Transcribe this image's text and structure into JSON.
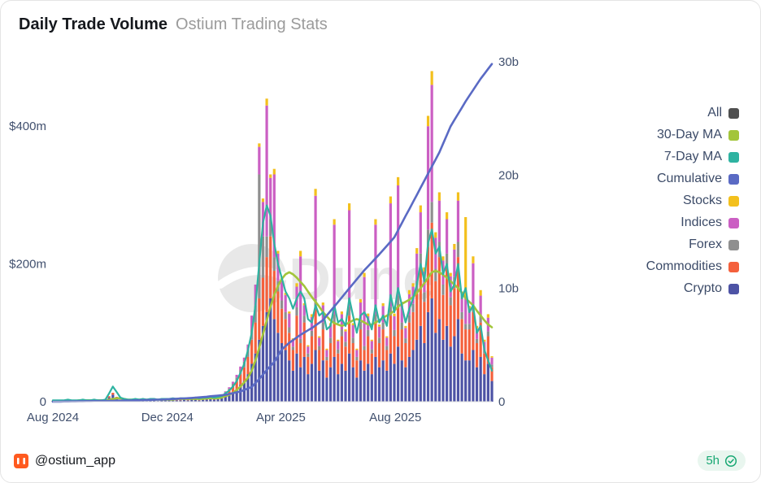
{
  "card": {
    "title": "Daily Trade Volume",
    "subtitle": "Ostium Trading Stats",
    "footer": {
      "handle": "@ostium_app",
      "time": "5h"
    }
  },
  "watermark": "Dune",
  "legend": [
    {
      "label": "All",
      "color": "#4f4f4f"
    },
    {
      "label": "30-Day MA",
      "color": "#a3c53a"
    },
    {
      "label": "7-Day MA",
      "color": "#2eb3a1"
    },
    {
      "label": "Cumulative",
      "color": "#5a6ac4"
    },
    {
      "label": "Stocks",
      "color": "#f3c01d"
    },
    {
      "label": "Indices",
      "color": "#cb5fc3"
    },
    {
      "label": "Forex",
      "color": "#8f8f8f"
    },
    {
      "label": "Commodities",
      "color": "#f4603c"
    },
    {
      "label": "Crypto",
      "color": "#4d53a5"
    }
  ],
  "chart_data": {
    "type": "combo",
    "title": "Daily Trade Volume",
    "subtitle": "Ostium Trading Stats",
    "legend_position": "right",
    "grid": false,
    "x_start": "2024-08-01",
    "x_step_days": 4,
    "x_ticks": [
      {
        "label": "Aug 2024",
        "index": 0
      },
      {
        "label": "Dec 2024",
        "index": 30.5
      },
      {
        "label": "Apr 2025",
        "index": 60.75
      },
      {
        "label": "Aug 2025",
        "index": 91.25
      }
    ],
    "y_left": {
      "unit": "$m",
      "ticks": [
        "0",
        "$200m",
        "$400m"
      ],
      "tick_values": [
        0,
        200,
        400
      ],
      "max": 510
    },
    "y_right": {
      "unit": "$b",
      "ticks": [
        "0",
        "10b",
        "20b",
        "30b"
      ],
      "tick_values": [
        0,
        10,
        20,
        30
      ],
      "max": 31
    },
    "bar_series": [
      {
        "name": "Crypto",
        "color": "#4d53a5",
        "axis": "left",
        "values": [
          1,
          1,
          1,
          1,
          2,
          1,
          1,
          1,
          2,
          1,
          1,
          2,
          1,
          1,
          2,
          6,
          10,
          5,
          2,
          2,
          1,
          2,
          1,
          2,
          2,
          1,
          2,
          2,
          1,
          2,
          2,
          2,
          3,
          2,
          2,
          3,
          2,
          3,
          3,
          2,
          3,
          3,
          4,
          3,
          4,
          5,
          8,
          10,
          14,
          18,
          25,
          30,
          40,
          55,
          70,
          90,
          110,
          130,
          150,
          120,
          100,
          85,
          75,
          60,
          45,
          70,
          50,
          65,
          40,
          55,
          75,
          45,
          60,
          35,
          50,
          65,
          40,
          55,
          45,
          70,
          50,
          35,
          60,
          45,
          55,
          40,
          65,
          50,
          60,
          45,
          70,
          55,
          80,
          60,
          50,
          65,
          75,
          90,
          110,
          85,
          130,
          150,
          100,
          120,
          90,
          110,
          80,
          95,
          120,
          70,
          60,
          60,
          75,
          50,
          65,
          40,
          55,
          30
        ]
      },
      {
        "name": "Commodities",
        "color": "#f4603c",
        "axis": "left",
        "values": [
          0,
          0,
          0,
          0,
          1,
          0,
          0,
          0,
          1,
          0,
          0,
          1,
          0,
          0,
          1,
          2,
          3,
          2,
          1,
          1,
          0,
          1,
          0,
          1,
          1,
          0,
          1,
          1,
          0,
          1,
          1,
          1,
          1,
          1,
          1,
          2,
          1,
          2,
          2,
          1,
          2,
          2,
          2,
          2,
          3,
          3,
          4,
          6,
          8,
          12,
          15,
          20,
          25,
          35,
          45,
          60,
          70,
          80,
          90,
          70,
          60,
          50,
          45,
          40,
          30,
          55,
          35,
          50,
          25,
          40,
          60,
          30,
          45,
          25,
          35,
          50,
          30,
          40,
          35,
          55,
          35,
          25,
          45,
          30,
          40,
          30,
          50,
          35,
          45,
          30,
          55,
          40,
          60,
          45,
          35,
          50,
          55,
          70,
          85,
          60,
          95,
          110,
          75,
          90,
          65,
          85,
          60,
          70,
          90,
          50,
          45,
          45,
          55,
          35,
          50,
          30,
          40,
          20
        ]
      },
      {
        "name": "Forex",
        "color": "#8f8f8f",
        "axis": "left",
        "values": [
          0,
          0,
          0,
          0,
          0,
          0,
          0,
          0,
          0,
          0,
          0,
          0,
          0,
          0,
          0,
          0,
          0,
          0,
          0,
          0,
          0,
          0,
          0,
          0,
          0,
          0,
          0,
          0,
          0,
          0,
          0,
          0,
          0,
          0,
          0,
          0,
          0,
          0,
          0,
          0,
          0,
          0,
          0,
          0,
          0,
          0,
          2,
          3,
          4,
          5,
          6,
          8,
          10,
          15,
          25,
          180,
          60,
          30,
          25,
          20,
          15,
          12,
          10,
          8,
          5,
          12,
          6,
          10,
          5,
          8,
          14,
          6,
          10,
          5,
          8,
          12,
          6,
          10,
          7,
          13,
          8,
          5,
          11,
          6,
          9,
          6,
          12,
          8,
          10,
          6,
          13,
          9,
          14,
          10,
          7,
          11,
          12,
          15,
          20,
          14,
          25,
          30,
          18,
          22,
          15,
          20,
          12,
          16,
          22,
          10,
          8,
          8,
          11,
          6,
          9,
          5,
          7,
          4
        ]
      },
      {
        "name": "Indices",
        "color": "#cb5fc3",
        "axis": "left",
        "values": [
          0,
          0,
          0,
          0,
          0,
          0,
          0,
          0,
          0,
          0,
          0,
          0,
          0,
          0,
          0,
          0,
          0,
          0,
          0,
          0,
          0,
          0,
          0,
          0,
          0,
          0,
          0,
          0,
          0,
          0,
          0,
          0,
          0,
          0,
          0,
          0,
          0,
          0,
          0,
          0,
          0,
          0,
          0,
          0,
          0,
          0,
          1,
          2,
          3,
          4,
          5,
          6,
          8,
          20,
          30,
          40,
          50,
          190,
          60,
          120,
          40,
          30,
          25,
          20,
          10,
          30,
          120,
          15,
          10,
          20,
          150,
          12,
          25,
          10,
          18,
          130,
          12,
          22,
          15,
          140,
          18,
          10,
          28,
          100,
          20,
          12,
          130,
          16,
          24,
          12,
          150,
          20,
          160,
          25,
          15,
          30,
          25,
          40,
          60,
          30,
          150,
          170,
          45,
          60,
          35,
          50,
          30,
          40,
          60,
          25,
          40,
          20,
          60,
          15,
          30,
          12,
          20,
          10
        ]
      },
      {
        "name": "Stocks",
        "color": "#f3c01d",
        "axis": "left",
        "values": [
          0,
          0,
          0,
          0,
          0,
          0,
          0,
          0,
          0,
          0,
          0,
          0,
          0,
          0,
          0,
          0,
          0,
          0,
          0,
          0,
          0,
          0,
          0,
          0,
          0,
          0,
          0,
          0,
          0,
          0,
          0,
          0,
          0,
          0,
          0,
          0,
          0,
          0,
          0,
          0,
          0,
          0,
          0,
          0,
          0,
          0,
          0,
          0,
          0,
          0,
          0,
          0,
          0,
          0,
          0,
          5,
          5,
          10,
          5,
          8,
          4,
          3,
          3,
          3,
          2,
          5,
          8,
          3,
          2,
          4,
          10,
          2,
          4,
          2,
          3,
          8,
          2,
          4,
          3,
          10,
          3,
          2,
          5,
          6,
          4,
          2,
          8,
          3,
          4,
          2,
          10,
          4,
          12,
          5,
          3,
          6,
          5,
          8,
          10,
          6,
          15,
          20,
          8,
          12,
          6,
          10,
          5,
          8,
          12,
          5,
          115,
          6,
          10,
          4,
          8,
          3,
          5,
          2
        ]
      }
    ],
    "line_series": [
      {
        "name": "30-Day MA",
        "color": "#a3c53a",
        "axis": "left",
        "width": 2.6,
        "values": [
          1,
          1,
          1,
          1,
          1,
          1,
          1,
          2,
          2,
          2,
          2,
          2,
          2,
          2,
          2,
          3,
          4,
          5,
          5,
          4,
          3,
          3,
          3,
          3,
          3,
          3,
          3,
          3,
          3,
          3,
          3,
          3,
          3,
          4,
          4,
          4,
          4,
          4,
          4,
          4,
          4,
          5,
          5,
          5,
          5,
          6,
          8,
          10,
          13,
          17,
          22,
          28,
          35,
          45,
          60,
          78,
          98,
          118,
          138,
          155,
          168,
          178,
          185,
          188,
          185,
          180,
          174,
          168,
          160,
          152,
          145,
          138,
          130,
          124,
          118,
          114,
          112,
          110,
          112,
          115,
          118,
          120,
          118,
          115,
          112,
          112,
          115,
          118,
          122,
          125,
          128,
          132,
          138,
          142,
          145,
          148,
          152,
          158,
          165,
          172,
          180,
          188,
          190,
          188,
          184,
          180,
          175,
          170,
          165,
          158,
          150,
          145,
          140,
          132,
          125,
          118,
          112,
          108
        ]
      },
      {
        "name": "7-Day MA",
        "color": "#2eb3a1",
        "axis": "left",
        "width": 2.2,
        "values": [
          2,
          2,
          2,
          2,
          3,
          2,
          2,
          2,
          3,
          2,
          2,
          3,
          2,
          2,
          3,
          12,
          22,
          14,
          6,
          4,
          3,
          3,
          4,
          3,
          4,
          3,
          4,
          4,
          3,
          4,
          4,
          4,
          5,
          4,
          5,
          5,
          5,
          5,
          6,
          5,
          6,
          6,
          7,
          6,
          7,
          8,
          12,
          16,
          22,
          30,
          42,
          55,
          75,
          100,
          140,
          200,
          260,
          285,
          270,
          230,
          200,
          180,
          160,
          150,
          135,
          150,
          160,
          150,
          120,
          115,
          140,
          125,
          130,
          105,
          110,
          140,
          115,
          120,
          110,
          150,
          125,
          100,
          125,
          130,
          120,
          105,
          140,
          115,
          125,
          110,
          155,
          130,
          165,
          140,
          115,
          135,
          150,
          170,
          200,
          175,
          230,
          250,
          215,
          225,
          185,
          200,
          160,
          170,
          200,
          150,
          165,
          130,
          140,
          100,
          110,
          75,
          60,
          45
        ]
      },
      {
        "name": "Cumulative",
        "color": "#5a6ac4",
        "axis": "right",
        "width": 2.6,
        "values": [
          0,
          0.01,
          0.01,
          0.02,
          0.02,
          0.03,
          0.03,
          0.04,
          0.04,
          0.05,
          0.05,
          0.06,
          0.06,
          0.07,
          0.07,
          0.08,
          0.08,
          0.09,
          0.09,
          0.1,
          0.1,
          0.11,
          0.12,
          0.13,
          0.14,
          0.15,
          0.16,
          0.17,
          0.18,
          0.19,
          0.2,
          0.22,
          0.24,
          0.26,
          0.28,
          0.29,
          0.31,
          0.33,
          0.35,
          0.38,
          0.41,
          0.44,
          0.48,
          0.51,
          0.54,
          0.57,
          0.6,
          0.68,
          0.75,
          0.83,
          0.9,
          1.03,
          1.17,
          1.3,
          1.65,
          2.0,
          2.4,
          2.8,
          3.15,
          3.5,
          4.05,
          4.6,
          4.9,
          5.2,
          5.43,
          5.67,
          5.9,
          6.1,
          6.3,
          6.5,
          6.73,
          6.97,
          7.2,
          7.6,
          8.0,
          8.4,
          8.8,
          9.2,
          9.6,
          10.0,
          10.4,
          10.8,
          11.2,
          11.6,
          11.95,
          12.3,
          12.65,
          13.0,
          13.38,
          13.75,
          14.13,
          14.5,
          15.13,
          15.75,
          16.38,
          17.0,
          17.63,
          18.25,
          18.88,
          19.5,
          20.13,
          20.75,
          21.38,
          22.0,
          22.77,
          23.53,
          24.3,
          24.85,
          25.4,
          25.95,
          26.5,
          27.0,
          27.5,
          28.0,
          28.5,
          28.93,
          29.37,
          29.8
        ]
      }
    ]
  }
}
